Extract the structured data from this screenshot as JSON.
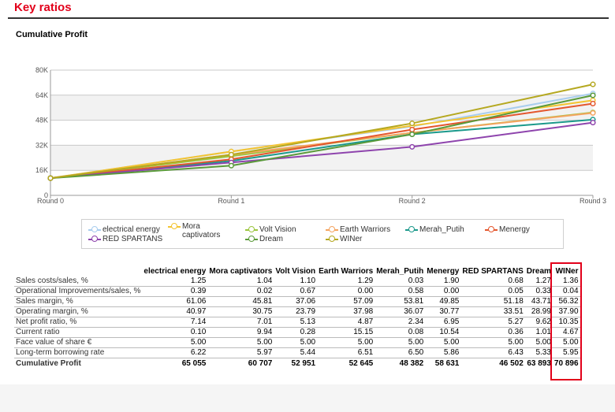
{
  "page_title": "Key ratios",
  "chart_data": {
    "type": "line",
    "title": "Cumulative Profit",
    "categories": [
      "Round 0",
      "Round 1",
      "Round 2",
      "Round 3"
    ],
    "ylim": [
      0,
      80000
    ],
    "yticks": [
      0,
      16000,
      32000,
      48000,
      64000,
      80000
    ],
    "ytick_labels": [
      "0",
      "16K",
      "32K",
      "48K",
      "64K",
      "80K"
    ],
    "grid": true,
    "legend_position": "bottom",
    "series": [
      {
        "name": "electrical energy",
        "color": "#a8cdee",
        "values": [
          11000,
          28000,
          44000,
          65055
        ]
      },
      {
        "name": "Mora captivators",
        "color": "#f4c430",
        "values": [
          11000,
          28000,
          44500,
          60707
        ]
      },
      {
        "name": "Volt Vision",
        "color": "#9bc53d",
        "values": [
          11000,
          25000,
          40000,
          52951
        ]
      },
      {
        "name": "Earth Warriors",
        "color": "#f4a460",
        "values": [
          11000,
          26000,
          40000,
          52645
        ]
      },
      {
        "name": "Merah_Putih",
        "color": "#1b998b",
        "values": [
          11000,
          22000,
          39000,
          48382
        ]
      },
      {
        "name": "Menergy",
        "color": "#e4572e",
        "values": [
          11000,
          23000,
          42000,
          58631
        ]
      },
      {
        "name": "RED SPARTANS",
        "color": "#8e44ad",
        "values": [
          11000,
          21000,
          31000,
          46502
        ]
      },
      {
        "name": "Dream",
        "color": "#5a9a3a",
        "values": [
          11000,
          19000,
          39000,
          63893
        ]
      },
      {
        "name": "WINer",
        "color": "#b5a820",
        "values": [
          11000,
          26000,
          46000,
          70896
        ]
      }
    ]
  },
  "table": {
    "headers": [
      "electrical energy",
      "Mora captivators",
      "Volt Vision",
      "Earth Warriors",
      "Merah_Putih",
      "Menergy",
      "RED SPARTANS",
      "Dream",
      "WINer"
    ],
    "rows": [
      {
        "label": "Sales costs/sales, %",
        "values": [
          "1.25",
          "1.04",
          "1.10",
          "1.29",
          "0.03",
          "1.90",
          "0.68",
          "1.27",
          "1.36"
        ]
      },
      {
        "label": "Operational Improvements/sales, %",
        "values": [
          "0.39",
          "0.02",
          "0.67",
          "0.00",
          "0.58",
          "0.00",
          "0.05",
          "0.33",
          "0.04"
        ]
      },
      {
        "label": "Sales margin, %",
        "values": [
          "61.06",
          "45.81",
          "37.06",
          "57.09",
          "53.81",
          "49.85",
          "51.18",
          "43.71",
          "56.32"
        ]
      },
      {
        "label": "Operating margin, %",
        "values": [
          "40.97",
          "30.75",
          "23.79",
          "37.98",
          "36.07",
          "30.77",
          "33.51",
          "28.99",
          "37.90"
        ]
      },
      {
        "label": "Net profit ratio, %",
        "values": [
          "7.14",
          "7.01",
          "5.13",
          "4.87",
          "2.34",
          "6.95",
          "5.27",
          "9.62",
          "10.35"
        ]
      },
      {
        "label": "Current ratio",
        "values": [
          "0.10",
          "9.94",
          "0.28",
          "15.15",
          "0.08",
          "10.54",
          "0.36",
          "1.01",
          "4.67"
        ]
      },
      {
        "label": "Face value of share €",
        "values": [
          "5.00",
          "5.00",
          "5.00",
          "5.00",
          "5.00",
          "5.00",
          "5.00",
          "5.00",
          "5.00"
        ]
      },
      {
        "label": "Long-term borrowing rate",
        "values": [
          "6.22",
          "5.97",
          "5.44",
          "6.51",
          "6.50",
          "5.86",
          "6.43",
          "5.33",
          "5.95"
        ]
      }
    ],
    "cumulative": {
      "label": "Cumulative Profit",
      "values": [
        "65 055",
        "60 707",
        "52 951",
        "52 645",
        "48 382",
        "58 631",
        "46 502",
        "63 893",
        "70 896"
      ]
    }
  }
}
